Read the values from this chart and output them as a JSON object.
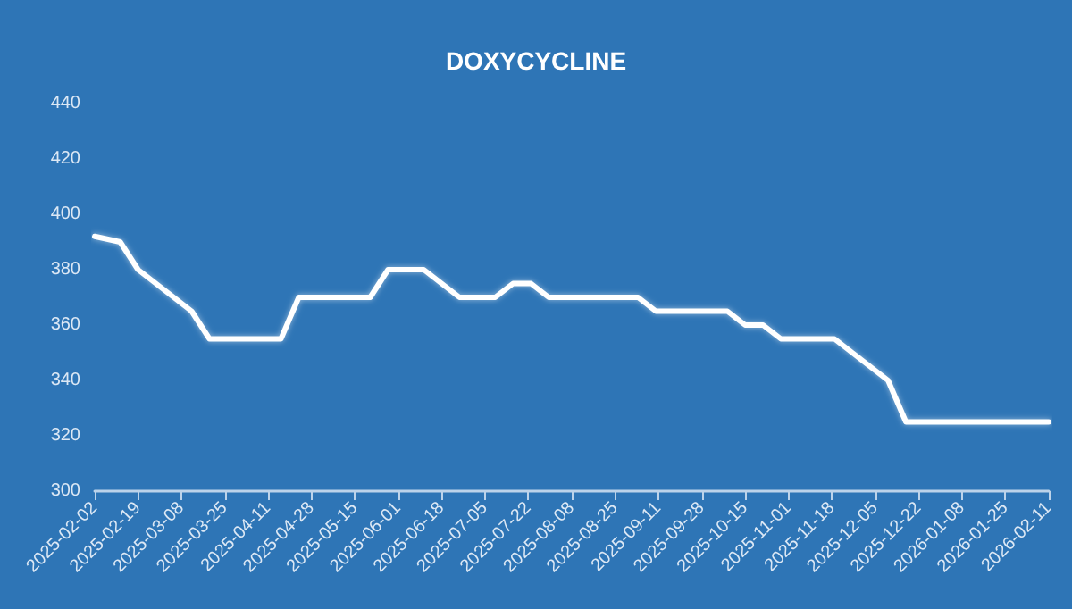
{
  "chart_data": {
    "type": "line",
    "title": "DOXYCYCLINE",
    "x": [
      "2025-02-02",
      "2025-02-12",
      "2025-02-19",
      "2025-02-26",
      "2025-03-05",
      "2025-03-12",
      "2025-03-19",
      "2025-03-26",
      "2025-04-02",
      "2025-04-09",
      "2025-04-16",
      "2025-04-23",
      "2025-04-30",
      "2025-05-07",
      "2025-05-14",
      "2025-05-21",
      "2025-05-28",
      "2025-06-04",
      "2025-06-11",
      "2025-06-18",
      "2025-06-25",
      "2025-07-02",
      "2025-07-09",
      "2025-07-16",
      "2025-07-23",
      "2025-07-30",
      "2025-08-06",
      "2025-08-13",
      "2025-08-20",
      "2025-08-27",
      "2025-09-03",
      "2025-09-10",
      "2025-09-17",
      "2025-09-24",
      "2025-10-01",
      "2025-10-08",
      "2025-10-15",
      "2025-10-22",
      "2025-10-29",
      "2025-11-05",
      "2025-11-12",
      "2025-11-19",
      "2025-11-26",
      "2025-12-03",
      "2025-12-10",
      "2025-12-17",
      "2025-12-24",
      "2025-12-31",
      "2026-01-07",
      "2026-01-14",
      "2026-01-21",
      "2026-01-28",
      "2026-02-04",
      "2026-02-11"
    ],
    "series": [
      {
        "color": "#ffffff",
        "values": [
          392,
          390,
          380,
          375,
          370,
          365,
          355,
          355,
          355,
          355,
          355,
          370,
          370,
          370,
          370,
          370,
          380,
          380,
          380,
          375,
          370,
          370,
          370,
          375,
          375,
          370,
          370,
          370,
          370,
          370,
          370,
          365,
          365,
          365,
          365,
          365,
          360,
          360,
          355,
          355,
          355,
          355,
          350,
          345,
          340,
          325,
          325,
          325,
          325,
          325,
          325,
          325,
          325,
          325
        ]
      }
    ],
    "xlim": [
      "2025-02-02",
      "2026-02-11"
    ],
    "xticks": [
      "2025-02-02",
      "2025-02-19",
      "2025-03-08",
      "2025-03-25",
      "2025-04-11",
      "2025-04-28",
      "2025-05-15",
      "2025-06-01",
      "2025-06-18",
      "2025-07-05",
      "2025-07-22",
      "2025-08-08",
      "2025-08-25",
      "2025-09-11",
      "2025-09-28",
      "2025-10-15",
      "2025-11-01",
      "2025-11-18",
      "2025-12-05",
      "2025-12-22",
      "2026-01-08",
      "2026-01-25",
      "2026-02-11"
    ],
    "ylim": [
      300,
      440
    ],
    "yticks": [
      300,
      320,
      340,
      360,
      380,
      400,
      420,
      440
    ],
    "grid": false,
    "marker": "none",
    "line_style": "solid"
  }
}
